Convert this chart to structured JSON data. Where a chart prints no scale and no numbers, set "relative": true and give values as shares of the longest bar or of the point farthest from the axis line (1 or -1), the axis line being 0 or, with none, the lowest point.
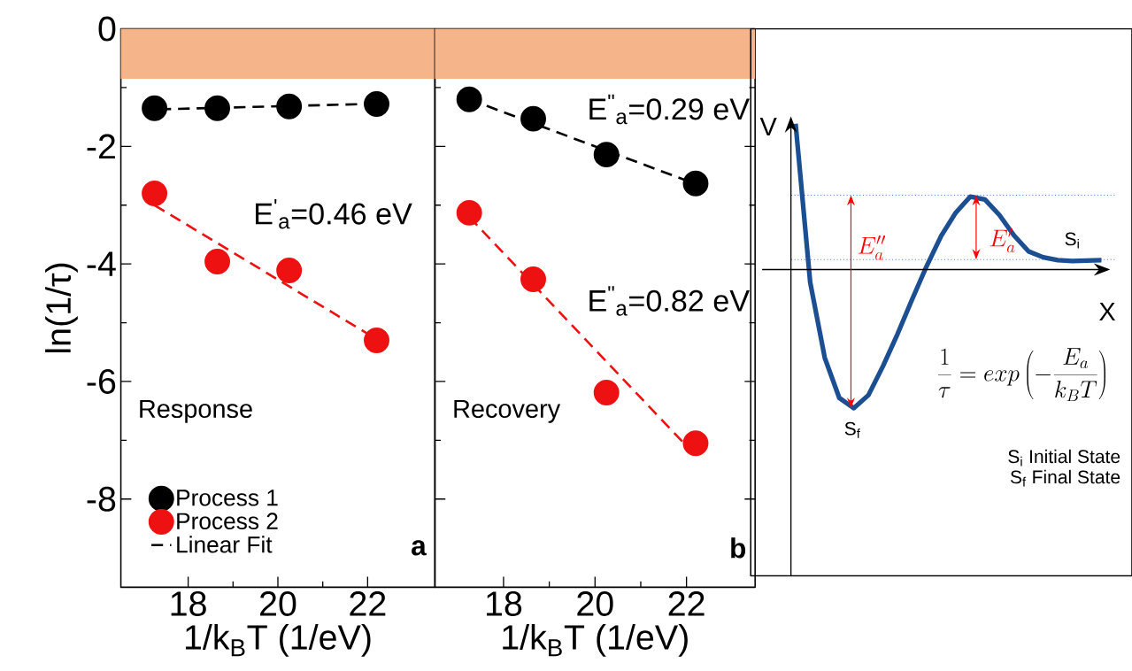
{
  "chart_data": [
    {
      "type": "scatter",
      "xlabel": "1/k$_{B}$T (1/eV)",
      "ylabel": "ln(1/τ)",
      "xlim": [
        16.5,
        23.5
      ],
      "ylim": [
        -9.5,
        0
      ],
      "xticks": [
        18,
        20,
        22
      ],
      "yticks": [
        -8,
        -6,
        -4,
        -2,
        0
      ],
      "legend": "bottom left",
      "x": [
        17.25,
        18.65,
        20.25,
        22.2
      ],
      "bands": [
        {
          "axis": "y",
          "from": -0.85,
          "to": 0,
          "color": "#f6b48a"
        }
      ],
      "annotations": [
        "E$^{'}$$_{a}$=0.46 eV",
        "Response",
        "a"
      ],
      "series": [
        {
          "name": "Process 1",
          "color": "#000000",
          "marker": "circle",
          "values": [
            -1.35,
            -1.35,
            -1.32,
            -1.28
          ]
        },
        {
          "name": "Process 2",
          "color": "#ee1111",
          "marker": "circle",
          "values": [
            -2.8,
            -3.96,
            -4.11,
            -5.3
          ]
        },
        {
          "name": "Linear Fit",
          "type": "line",
          "color": "#000000",
          "marker": "none",
          "line_style": "dashed",
          "x": [
            17.36,
            22.44
          ],
          "values": [
            -1.37,
            -1.27
          ]
        },
        {
          "type": "line",
          "color": "#ee1111",
          "marker": "none",
          "line_style": "dashed",
          "x": [
            17.25,
            22.2
          ],
          "values": [
            -3.0,
            -5.28
          ]
        }
      ]
    },
    {
      "type": "scatter",
      "xlabel": "1/k$_{B}$T (1/eV)",
      "xlim": [
        16.5,
        23.5
      ],
      "ylim": [
        -9.5,
        0
      ],
      "xticks": [
        18,
        20,
        22
      ],
      "yticks": [
        -8,
        -6,
        -4,
        -2,
        0
      ],
      "tick_labels": "x",
      "x": [
        17.25,
        18.65,
        20.25,
        22.2
      ],
      "bands": [
        {
          "axis": "y",
          "from": -0.85,
          "to": 0,
          "color": "#f6b48a"
        }
      ],
      "annotations": [
        "E$^{\"}$$_{a}$=0.29 eV",
        "E$^{\"}$$_{a}$=0.82 eV",
        "Recovery",
        "b"
      ],
      "series": [
        {
          "color": "#000000",
          "marker": "circle",
          "values": [
            -1.2,
            -1.53,
            -2.14,
            -2.63
          ]
        },
        {
          "color": "#ee1111",
          "marker": "circle",
          "values": [
            -3.13,
            -4.26,
            -6.19,
            -7.05
          ]
        },
        {
          "type": "line",
          "color": "#000000",
          "marker": "none",
          "line_style": "dashed",
          "x": [
            17.25,
            22.2
          ],
          "values": [
            -1.2,
            -2.64
          ]
        },
        {
          "type": "line",
          "color": "#ee1111",
          "marker": "none",
          "line_style": "dashed",
          "x": [
            17.25,
            22.2
          ],
          "values": [
            -3.2,
            -7.26
          ]
        }
      ]
    },
    {
      "type": "line",
      "relative": true,
      "xlabel": "X",
      "ylabel": "V",
      "categories": [
        null,
        null,
        null,
        null,
        null,
        null,
        null,
        null,
        null,
        null,
        null,
        null,
        null,
        null,
        null,
        null,
        null,
        null,
        null,
        null,
        null,
        null
      ],
      "ref_lines": [
        {
          "axis": "y",
          "value": 0.51,
          "color": "#4a7fd0",
          "line_style": "dotted"
        },
        {
          "axis": "y",
          "value": 0.068,
          "color": "#4a7fd0",
          "line_style": "dotted"
        }
      ],
      "annotations": [
        "E_a''",
        "E_a'",
        "S$_{i}$",
        "S$_{f}$",
        "\\frac{1}{\\tau}=exp\\left(-\\frac{E_a}{k_BT}\\right)",
        "S$_{i}$ Initial State",
        "S$_{f}$ Final State"
      ],
      "series": [
        {
          "color": "#1c4f92",
          "values": [
            1.0,
            -0.086,
            -0.604,
            -0.88,
            -0.95,
            -0.861,
            -0.662,
            -0.442,
            -0.205,
            0.024,
            0.231,
            0.39,
            0.5,
            0.48,
            0.373,
            0.233,
            0.124,
            0.084,
            0.064,
            0.058,
            0.062,
            0.064
          ]
        }
      ]
    }
  ]
}
